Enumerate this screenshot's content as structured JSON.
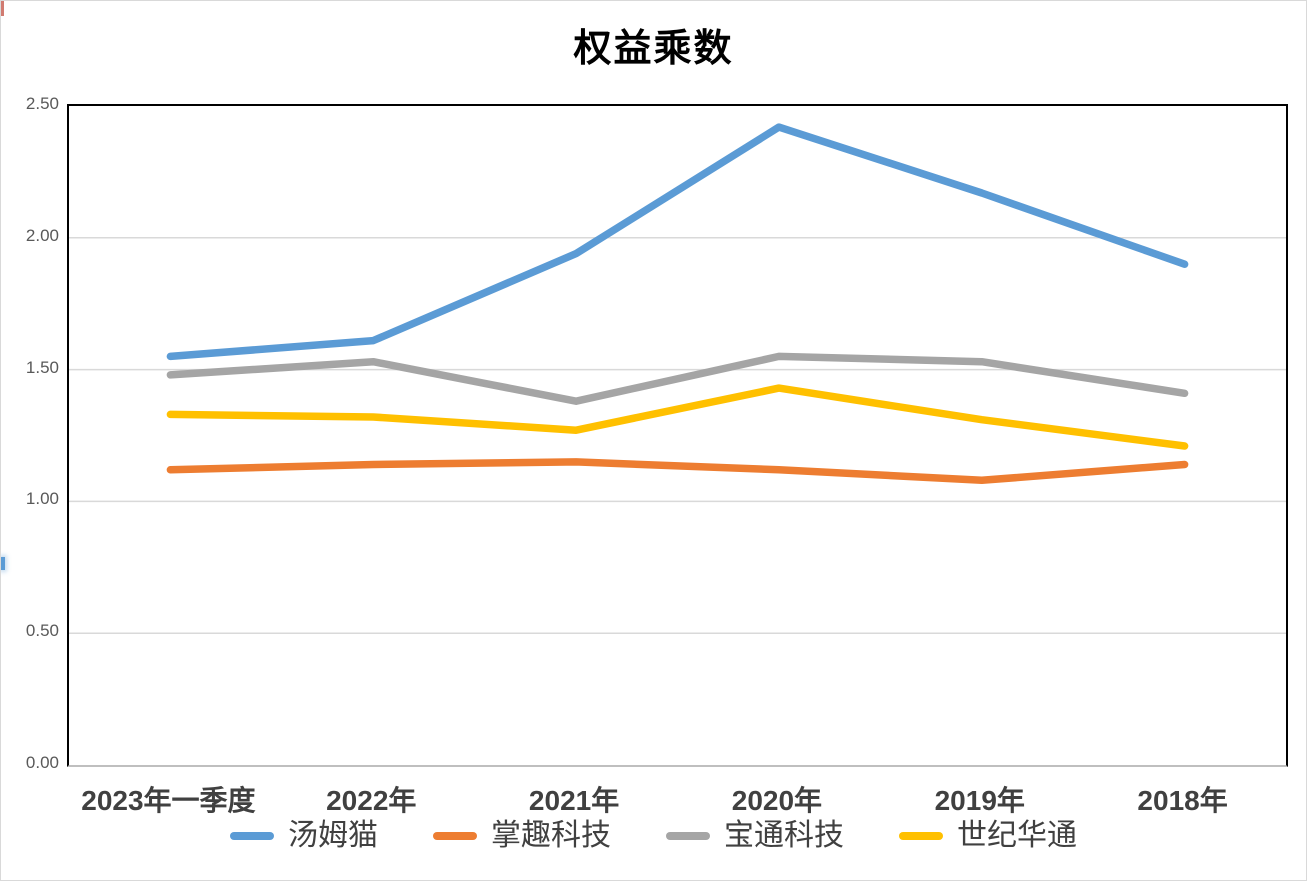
{
  "title": "权益乘数",
  "chart_data": {
    "type": "line",
    "title": "权益乘数",
    "categories": [
      "2023年一季度",
      "2022年",
      "2021年",
      "2020年",
      "2019年",
      "2018年"
    ],
    "series": [
      {
        "name": "汤姆猫",
        "color": "#5B9BD5",
        "values": [
          1.55,
          1.61,
          1.94,
          2.42,
          2.17,
          1.9
        ]
      },
      {
        "name": "掌趣科技",
        "color": "#ED7D31",
        "values": [
          1.12,
          1.14,
          1.15,
          1.12,
          1.08,
          1.14
        ]
      },
      {
        "name": "宝通科技",
        "color": "#A5A5A5",
        "values": [
          1.48,
          1.53,
          1.38,
          1.55,
          1.53,
          1.41
        ]
      },
      {
        "name": "世纪华通",
        "color": "#FFC000",
        "values": [
          1.33,
          1.32,
          1.27,
          1.43,
          1.31,
          1.21
        ]
      }
    ],
    "xlabel": "",
    "ylabel": "",
    "ylim": [
      0,
      2.5
    ],
    "yticks": [
      "0.00",
      "0.50",
      "1.00",
      "1.50",
      "2.00",
      "2.50"
    ],
    "ytick_values": [
      0,
      0.5,
      1.0,
      1.5,
      2.0,
      2.5
    ],
    "grid": true,
    "gridline_color": "#D9D9D9",
    "legend_position": "bottom"
  },
  "colors": {
    "axis_tick_label": "#595959",
    "category_label": "#404040",
    "plot_border": "#000000",
    "baseline": "#BFBFBF"
  }
}
